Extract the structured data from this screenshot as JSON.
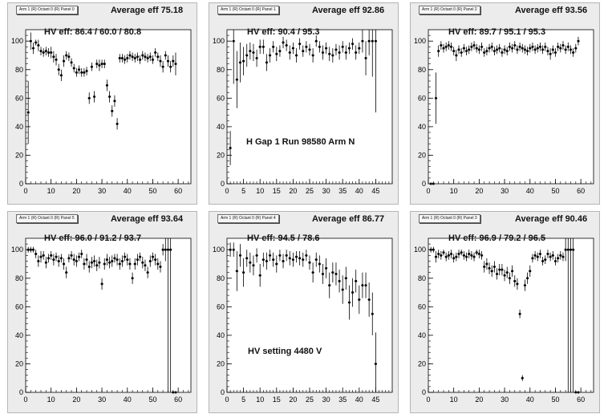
{
  "colors": {
    "frame_bg": "#ececec",
    "plot_bg": "#ffffff",
    "marker": "#000000",
    "axis": "#000000"
  },
  "charts": [
    {
      "header": "Arm 1 (R) Octant 0 (R) Panel 0",
      "average_label": "Average eff 75.18",
      "hv_label": "HV eff:   86.4 / 60.0 / 80.8",
      "note": "",
      "xaxis": {
        "min": 0,
        "max": 65,
        "ticks": [
          "0",
          "10",
          "20",
          "30",
          "40",
          "50",
          "60"
        ]
      },
      "yaxis": {
        "min": 0,
        "max": 108,
        "ticks": [
          "0",
          "20",
          "40",
          "60",
          "80",
          "100"
        ]
      }
    },
    {
      "header": "Arm 1 (R) Octant 0 (R) Panel 1",
      "average_label": "Average eff 92.86",
      "hv_label": "HV eff:   90.4 / 95.3",
      "note": "H Gap 1 Run 98580 Arm N",
      "xaxis": {
        "min": 0,
        "max": 50,
        "ticks": [
          "0",
          "5",
          "10",
          "15",
          "20",
          "25",
          "30",
          "35",
          "40",
          "45"
        ]
      },
      "yaxis": {
        "min": 0,
        "max": 108,
        "ticks": [
          "0",
          "20",
          "40",
          "60",
          "80",
          "100"
        ]
      }
    },
    {
      "header": "Arm 1 (R) Octant 0 (R) Panel 2",
      "average_label": "Average eff 93.56",
      "hv_label": "HV eff:   89.7 / 95.1 / 95.3",
      "note": "",
      "xaxis": {
        "min": 0,
        "max": 65,
        "ticks": [
          "0",
          "10",
          "20",
          "30",
          "40",
          "50",
          "60"
        ]
      },
      "yaxis": {
        "min": 0,
        "max": 108,
        "ticks": [
          "0",
          "20",
          "40",
          "60",
          "80",
          "100"
        ]
      }
    },
    {
      "header": "Arm 1 (R) Octant 0 (R) Panel 5",
      "average_label": "Average eff 93.64",
      "hv_label": "HV eff:   96.0 / 91.2 / 93.7",
      "note": "",
      "xaxis": {
        "min": 0,
        "max": 65,
        "ticks": [
          "0",
          "10",
          "20",
          "30",
          "40",
          "50",
          "60"
        ]
      },
      "yaxis": {
        "min": 0,
        "max": 108,
        "ticks": [
          "0",
          "20",
          "40",
          "60",
          "80",
          "100"
        ]
      }
    },
    {
      "header": "Arm 1 (R) Octant 0 (R) Panel 4",
      "average_label": "Average eff 86.77",
      "hv_label": "HV eff:   94.5 / 78.6",
      "note": "HV setting 4480 V",
      "xaxis": {
        "min": 0,
        "max": 50,
        "ticks": [
          "0",
          "5",
          "10",
          "15",
          "20",
          "25",
          "30",
          "35",
          "40",
          "45"
        ]
      },
      "yaxis": {
        "min": 0,
        "max": 108,
        "ticks": [
          "0",
          "20",
          "40",
          "60",
          "80",
          "100"
        ]
      }
    },
    {
      "header": "Arm 1 (R) Octant 0 (R) Panel 3",
      "average_label": "Average eff 90.46",
      "hv_label": "HV eff:   96.9 / 79.2 / 96.5",
      "note": "",
      "xaxis": {
        "min": 0,
        "max": 65,
        "ticks": [
          "0",
          "10",
          "20",
          "30",
          "40",
          "50",
          "60"
        ]
      },
      "yaxis": {
        "min": 0,
        "max": 108,
        "ticks": [
          "0",
          "20",
          "40",
          "60",
          "80",
          "100"
        ]
      }
    }
  ],
  "chart_data": [
    {
      "type": "scatter",
      "title": "Average eff 75.18",
      "xlim": [
        0,
        65
      ],
      "ylim": [
        0,
        108
      ],
      "grid": false,
      "x": [
        1,
        2,
        3,
        4,
        5,
        6,
        7,
        8,
        9,
        10,
        11,
        12,
        13,
        14,
        15,
        16,
        17,
        18,
        19,
        20,
        21,
        22,
        23,
        24,
        25,
        26,
        27,
        28,
        29,
        30,
        31,
        32,
        33,
        34,
        35,
        36,
        37,
        38,
        39,
        40,
        41,
        42,
        43,
        44,
        45,
        46,
        47,
        48,
        49,
        50,
        51,
        52,
        53,
        54,
        55,
        56,
        57,
        58,
        59
      ],
      "y": [
        50,
        100,
        95,
        99,
        97,
        93,
        92,
        93,
        92,
        92,
        89,
        87,
        80,
        76,
        86,
        90,
        89,
        85,
        81,
        78,
        80,
        78,
        78,
        79,
        60,
        82,
        61,
        84,
        83,
        84,
        84,
        69,
        61,
        51,
        58,
        42,
        88,
        88,
        87,
        88,
        90,
        89,
        88,
        89,
        87,
        90,
        89,
        88,
        89,
        87,
        92,
        89,
        86,
        82,
        90,
        86,
        82,
        86,
        84
      ],
      "err": [
        22,
        6,
        4,
        2,
        4,
        3,
        3,
        3,
        3,
        4,
        4,
        4,
        4,
        4,
        4,
        3,
        3,
        3,
        3,
        3,
        3,
        3,
        3,
        3,
        4,
        3,
        4,
        3,
        4,
        3,
        3,
        4,
        4,
        4,
        4,
        4,
        3,
        3,
        3,
        3,
        3,
        3,
        3,
        3,
        3,
        3,
        3,
        3,
        3,
        3,
        3,
        3,
        4,
        4,
        3,
        4,
        4,
        4,
        8
      ]
    },
    {
      "type": "scatter",
      "title": "Average eff 92.86",
      "xlim": [
        0,
        50
      ],
      "ylim": [
        0,
        108
      ],
      "grid": false,
      "x": [
        1,
        2,
        3,
        4,
        5,
        6,
        7,
        8,
        9,
        10,
        11,
        12,
        13,
        14,
        15,
        16,
        17,
        18,
        19,
        20,
        21,
        22,
        23,
        24,
        25,
        26,
        27,
        28,
        29,
        30,
        31,
        32,
        33,
        34,
        35,
        36,
        37,
        38,
        39,
        40,
        41,
        42,
        43,
        44,
        45
      ],
      "y": [
        25,
        100,
        73,
        85,
        86,
        90,
        93,
        92,
        88,
        96,
        96,
        85,
        90,
        96,
        91,
        93,
        99,
        97,
        92,
        95,
        90,
        98,
        93,
        96,
        94,
        90,
        100,
        96,
        92,
        95,
        91,
        90,
        94,
        92,
        96,
        92,
        95,
        98,
        92,
        95,
        100,
        88,
        100,
        100,
        100
      ],
      "err": [
        12,
        30,
        20,
        14,
        10,
        8,
        6,
        6,
        6,
        5,
        5,
        6,
        5,
        4,
        5,
        4,
        4,
        4,
        5,
        4,
        5,
        4,
        4,
        4,
        4,
        5,
        4,
        4,
        5,
        4,
        5,
        5,
        4,
        5,
        4,
        5,
        4,
        4,
        5,
        4,
        8,
        12,
        10,
        25,
        50
      ]
    },
    {
      "type": "scatter",
      "title": "Average eff 93.56",
      "xlim": [
        0,
        65
      ],
      "ylim": [
        0,
        108
      ],
      "grid": false,
      "x": [
        1,
        2,
        3,
        4,
        5,
        6,
        7,
        8,
        9,
        10,
        11,
        12,
        13,
        14,
        15,
        16,
        17,
        18,
        19,
        20,
        21,
        22,
        23,
        24,
        25,
        26,
        27,
        28,
        29,
        30,
        31,
        32,
        33,
        34,
        35,
        36,
        37,
        38,
        39,
        40,
        41,
        42,
        43,
        44,
        45,
        46,
        47,
        48,
        49,
        50,
        51,
        52,
        53,
        54,
        55,
        56,
        57,
        58,
        59
      ],
      "y": [
        0,
        0,
        60,
        93,
        97,
        95,
        96,
        97,
        96,
        93,
        90,
        94,
        92,
        95,
        93,
        94,
        96,
        97,
        95,
        94,
        96,
        92,
        93,
        95,
        96,
        93,
        94,
        95,
        92,
        94,
        93,
        96,
        95,
        97,
        94,
        96,
        95,
        94,
        93,
        95,
        96,
        94,
        95,
        96,
        94,
        96,
        93,
        91,
        94,
        92,
        96,
        95,
        97,
        94,
        96,
        94,
        92,
        95,
        100
      ],
      "err": [
        0,
        0,
        18,
        4,
        3,
        3,
        3,
        3,
        3,
        3,
        4,
        3,
        3,
        3,
        3,
        3,
        3,
        3,
        3,
        3,
        3,
        3,
        3,
        3,
        3,
        3,
        3,
        3,
        3,
        3,
        3,
        3,
        3,
        3,
        3,
        3,
        3,
        3,
        3,
        3,
        3,
        3,
        3,
        3,
        3,
        3,
        3,
        4,
        3,
        3,
        3,
        3,
        3,
        3,
        3,
        3,
        3,
        3,
        3
      ]
    },
    {
      "type": "scatter",
      "title": "Average eff 93.64",
      "xlim": [
        0,
        65
      ],
      "ylim": [
        0,
        108
      ],
      "grid": false,
      "x": [
        1,
        2,
        3,
        4,
        5,
        6,
        7,
        8,
        9,
        10,
        11,
        12,
        13,
        14,
        15,
        16,
        17,
        18,
        19,
        20,
        21,
        22,
        23,
        24,
        25,
        26,
        27,
        28,
        29,
        30,
        31,
        32,
        33,
        34,
        35,
        36,
        37,
        38,
        39,
        40,
        41,
        42,
        43,
        44,
        45,
        46,
        47,
        48,
        49,
        50,
        51,
        52,
        53,
        54,
        55,
        56,
        57,
        58,
        59
      ],
      "y": [
        100,
        100,
        100,
        97,
        92,
        95,
        96,
        91,
        94,
        96,
        93,
        95,
        92,
        94,
        90,
        84,
        94,
        96,
        93,
        92,
        95,
        97,
        90,
        93,
        88,
        91,
        92,
        89,
        91,
        76,
        90,
        93,
        91,
        92,
        94,
        93,
        90,
        92,
        95,
        93,
        90,
        80,
        90,
        93,
        95,
        91,
        89,
        84,
        92,
        95,
        93,
        90,
        88,
        100,
        100,
        100,
        100,
        0,
        0
      ],
      "err": [
        2,
        2,
        2,
        3,
        4,
        4,
        3,
        4,
        3,
        3,
        4,
        3,
        4,
        3,
        4,
        4,
        3,
        3,
        4,
        4,
        3,
        3,
        4,
        4,
        4,
        4,
        4,
        4,
        4,
        4,
        4,
        4,
        4,
        4,
        3,
        4,
        4,
        4,
        3,
        4,
        4,
        4,
        4,
        4,
        3,
        4,
        4,
        4,
        4,
        3,
        4,
        4,
        4,
        4,
        8,
        100,
        100,
        0,
        0
      ]
    },
    {
      "type": "scatter",
      "title": "Average eff 86.77",
      "xlim": [
        0,
        50
      ],
      "ylim": [
        0,
        108
      ],
      "grid": false,
      "x": [
        1,
        2,
        3,
        4,
        5,
        6,
        7,
        8,
        9,
        10,
        11,
        12,
        13,
        14,
        15,
        16,
        17,
        18,
        19,
        20,
        21,
        22,
        23,
        24,
        25,
        26,
        27,
        28,
        29,
        30,
        31,
        32,
        33,
        34,
        35,
        36,
        37,
        38,
        39,
        40,
        41,
        42,
        43,
        44,
        45
      ],
      "y": [
        100,
        100,
        85,
        96,
        84,
        94,
        91,
        89,
        96,
        82,
        93,
        92,
        96,
        93,
        90,
        96,
        92,
        96,
        94,
        93,
        95,
        94,
        93,
        96,
        91,
        84,
        93,
        90,
        83,
        87,
        75,
        84,
        83,
        78,
        72,
        80,
        63,
        70,
        78,
        65,
        75,
        75,
        65,
        55,
        20
      ],
      "err": [
        5,
        5,
        14,
        8,
        10,
        6,
        7,
        7,
        5,
        8,
        5,
        6,
        4,
        5,
        6,
        4,
        5,
        4,
        5,
        5,
        4,
        5,
        5,
        4,
        5,
        7,
        5,
        6,
        7,
        7,
        9,
        7,
        8,
        8,
        10,
        8,
        12,
        10,
        8,
        10,
        9,
        9,
        12,
        15,
        22
      ]
    },
    {
      "type": "scatter",
      "title": "Average eff 90.46",
      "xlim": [
        0,
        65
      ],
      "ylim": [
        0,
        108
      ],
      "grid": false,
      "x": [
        1,
        2,
        3,
        4,
        5,
        6,
        7,
        8,
        9,
        10,
        11,
        12,
        13,
        14,
        15,
        16,
        17,
        18,
        19,
        20,
        21,
        22,
        23,
        24,
        25,
        26,
        27,
        28,
        29,
        30,
        31,
        32,
        33,
        34,
        35,
        36,
        37,
        38,
        39,
        40,
        41,
        42,
        43,
        44,
        45,
        46,
        47,
        48,
        49,
        50,
        51,
        52,
        53,
        54,
        55,
        56,
        57,
        58,
        59
      ],
      "y": [
        100,
        100,
        95,
        97,
        96,
        98,
        95,
        96,
        97,
        94,
        95,
        97,
        98,
        96,
        95,
        97,
        96,
        95,
        98,
        97,
        96,
        88,
        90,
        87,
        85,
        88,
        83,
        86,
        86,
        82,
        84,
        80,
        85,
        78,
        76,
        55,
        10,
        75,
        80,
        85,
        94,
        96,
        95,
        97,
        92,
        93,
        97,
        95,
        96,
        92,
        94,
        96,
        95,
        100,
        100,
        100,
        100,
        0,
        0
      ],
      "err": [
        2,
        2,
        4,
        3,
        3,
        2,
        3,
        3,
        3,
        3,
        3,
        3,
        2,
        3,
        3,
        3,
        3,
        3,
        2,
        3,
        3,
        4,
        4,
        4,
        4,
        4,
        4,
        4,
        4,
        4,
        4,
        4,
        4,
        4,
        4,
        3,
        2,
        4,
        4,
        4,
        3,
        3,
        3,
        3,
        3,
        3,
        3,
        3,
        3,
        3,
        3,
        3,
        3,
        8,
        100,
        100,
        100,
        0,
        0
      ]
    }
  ]
}
